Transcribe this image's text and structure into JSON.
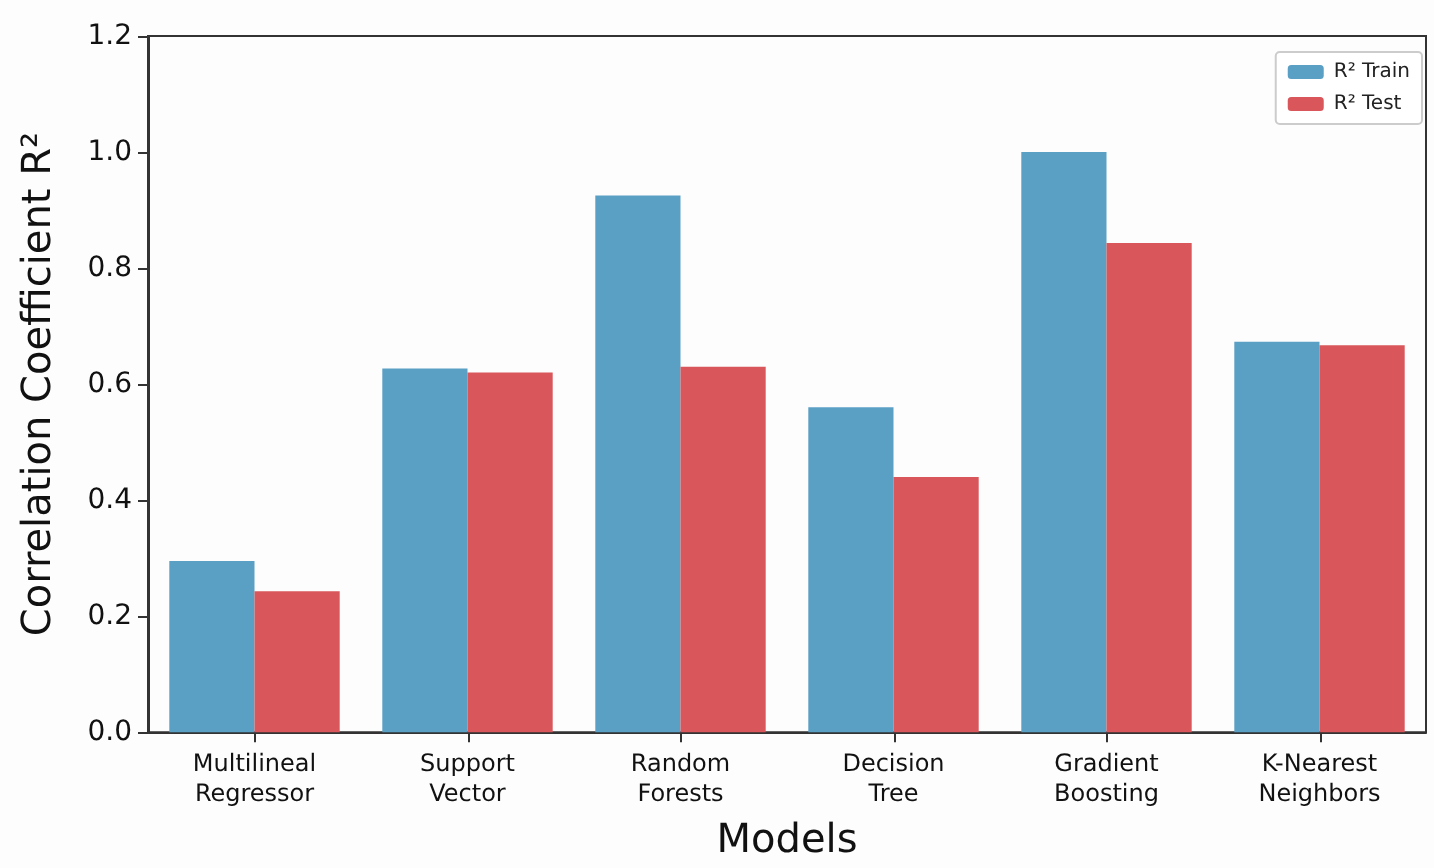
{
  "chart_data": {
    "type": "bar",
    "xlabel": "Models",
    "ylabel": "Correlation Coefficient R²",
    "categories": [
      "Multilineal\nRegressor",
      "Support\nVector",
      "Random\nForests",
      "Decision\nTree",
      "Gradient\nBoosting",
      "K-Nearest\nNeighbors"
    ],
    "series": [
      {
        "name": "R² Train",
        "color": "#5a9fc4",
        "values": [
          0.295,
          0.627,
          0.925,
          0.56,
          1.0,
          0.673
        ]
      },
      {
        "name": "R² Test",
        "color": "#d9575b",
        "values": [
          0.243,
          0.62,
          0.63,
          0.44,
          0.843,
          0.667
        ]
      }
    ],
    "ylim": [
      0,
      1.2
    ],
    "yticks": [
      {
        "value": 0,
        "label": "0.0"
      },
      0.2,
      0.4,
      0.6,
      0.8,
      {
        "value": 1,
        "label": "1.0"
      },
      1.2
    ],
    "grid": false,
    "legend": "top right"
  }
}
